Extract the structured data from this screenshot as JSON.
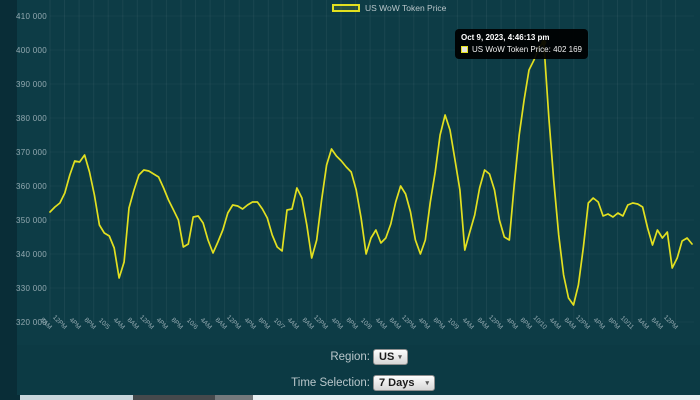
{
  "legend": {
    "label": "US WoW Token Price"
  },
  "tooltip": {
    "title": "Oct 9, 2023, 4:46:13 pm",
    "series": "US WoW Token Price",
    "value": "402 169",
    "text": "US WoW Token Price: 402 169"
  },
  "controls": {
    "region_label": "Region:",
    "region_value": "US",
    "time_label": "Time Selection:",
    "time_value": "7 Days"
  },
  "colors": {
    "line": "#e2e020",
    "chart_bg": "#0d3c46",
    "page_bg": "#0c3a44",
    "left_strip": "#092d37",
    "axis_text": "#93a9b0",
    "tooltip_bg": "#000000"
  },
  "chart_data": {
    "type": "line",
    "title": "",
    "xlabel": "",
    "ylabel": "",
    "legend_position": "top-center",
    "grid": "faint",
    "ylim": [
      320000,
      410000
    ],
    "y_ticks": [
      "410 000",
      "400 000",
      "390 000",
      "380 000",
      "370 000",
      "360 000",
      "350 000",
      "340 000",
      "330 000",
      "320 000"
    ],
    "x_ticks": [
      "8AM",
      "12PM",
      "4PM",
      "8PM",
      "10/5",
      "4AM",
      "8AM",
      "12PM",
      "4PM",
      "8PM",
      "10/6",
      "4AM",
      "8AM",
      "12PM",
      "4PM",
      "8PM",
      "10/7",
      "4AM",
      "8AM",
      "12PM",
      "4PM",
      "8PM",
      "10/8",
      "4AM",
      "8AM",
      "12PM",
      "4PM",
      "8PM",
      "10/9",
      "4AM",
      "8AM",
      "12PM",
      "4PM",
      "8PM",
      "10/10",
      "4AM",
      "8AM",
      "12PM",
      "4PM",
      "8PM",
      "10/11",
      "4AM",
      "8AM",
      "12PM"
    ],
    "highlight": {
      "index": 100,
      "value": 402169,
      "time": "Oct 9, 2023, 4:46:13 pm"
    },
    "series": [
      {
        "name": "US WoW Token Price",
        "values": [
          352350,
          353820,
          355000,
          357940,
          363240,
          367350,
          367060,
          369120,
          364120,
          357350,
          348530,
          346180,
          345290,
          341770,
          332940,
          337650,
          353530,
          358820,
          363240,
          364710,
          364410,
          363530,
          362650,
          359410,
          355880,
          352940,
          350000,
          342060,
          342940,
          350880,
          351180,
          349120,
          344120,
          340290,
          343530,
          347060,
          352060,
          354410,
          354120,
          353240,
          354410,
          355290,
          355290,
          353240,
          350590,
          345590,
          342060,
          340880,
          352940,
          353240,
          359410,
          356470,
          348530,
          338820,
          344120,
          355880,
          366180,
          370880,
          368820,
          367350,
          365590,
          364120,
          358820,
          350590,
          340000,
          344710,
          347060,
          343240,
          344710,
          348820,
          355290,
          360000,
          357650,
          352350,
          344120,
          340000,
          344120,
          355290,
          364120,
          375000,
          380880,
          376470,
          367650,
          358820,
          341180,
          346470,
          351470,
          359410,
          364710,
          363530,
          358820,
          350000,
          345000,
          344120,
          360290,
          375000,
          385290,
          394120,
          397060,
          400880,
          402169,
          380290,
          361770,
          345590,
          333820,
          327060,
          325000,
          330880,
          342060,
          355000,
          356470,
          355290,
          351180,
          351770,
          350880,
          352060,
          351180,
          354410,
          355000,
          354710,
          353820,
          347650,
          342650,
          347060,
          344710,
          346470,
          335880,
          338820,
          343820,
          344710,
          342940
        ]
      }
    ]
  }
}
